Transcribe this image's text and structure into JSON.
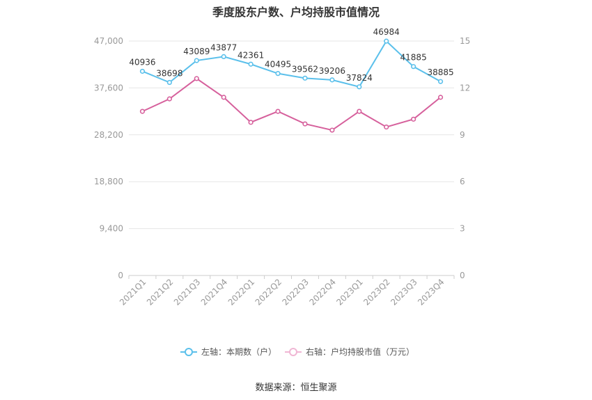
{
  "title": "季度股东户数、户均持股市值情况",
  "source": "数据来源：恒生聚源",
  "legend": {
    "left_label": "左轴：本期数（户）",
    "right_label": "右轴：户均持股市值（万元）"
  },
  "chart_data": {
    "type": "line",
    "categories": [
      "2021Q1",
      "2021Q2",
      "2021Q3",
      "2021Q4",
      "2022Q1",
      "2022Q2",
      "2022Q3",
      "2022Q4",
      "2023Q1",
      "2023Q2",
      "2023Q3",
      "2023Q4"
    ],
    "series": [
      {
        "name": "左轴：本期数（户）",
        "axis": "left",
        "color": "#5bc0eb",
        "values": [
          40936,
          38698,
          43089,
          43877,
          42361,
          40495,
          39562,
          39206,
          37824,
          46984,
          41885,
          38885
        ],
        "labels": [
          "40936",
          "38698",
          "43089",
          "43877",
          "42361",
          "40495",
          "39562",
          "39206",
          "37824",
          "46984",
          "41885",
          "38885"
        ]
      },
      {
        "name": "右轴：户均持股市值（万元）",
        "axis": "right",
        "color": "#d6609c",
        "values": [
          10.5,
          11.3,
          12.6,
          11.4,
          9.8,
          10.5,
          9.7,
          9.3,
          10.5,
          9.5,
          10.0,
          11.4
        ]
      }
    ],
    "y_left": {
      "min": 0,
      "max": 47000,
      "ticks": [
        "0",
        "9,400",
        "18,800",
        "28,200",
        "37,600",
        "47,000"
      ]
    },
    "y_right": {
      "min": 0,
      "max": 15,
      "ticks": [
        "0",
        "3",
        "6",
        "9",
        "12",
        "15"
      ]
    },
    "grid": true,
    "legend_position": "bottom"
  }
}
